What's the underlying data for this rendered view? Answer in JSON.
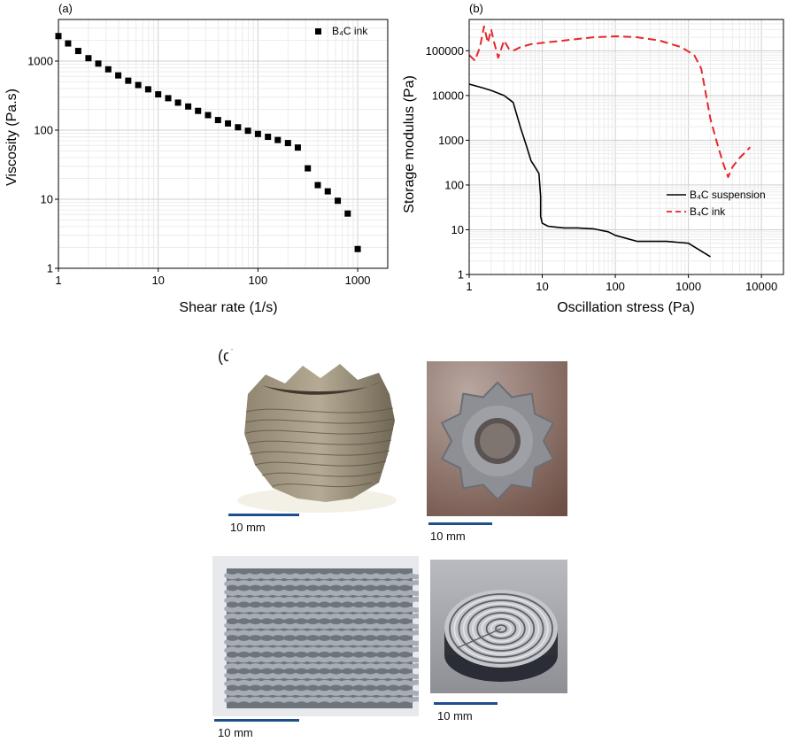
{
  "chart_data": [
    {
      "panel_label": "(a)",
      "type": "scatter",
      "xscale": "log",
      "yscale": "log",
      "xlim": [
        1,
        2000
      ],
      "ylim": [
        1,
        4000
      ],
      "xlabel": "Shear rate (1/s)",
      "ylabel": "Viscosity (Pa.s)",
      "xticks": [
        "1",
        "10",
        "100",
        "1000"
      ],
      "yticks": [
        "1",
        "10",
        "100",
        "1000"
      ],
      "grid": true,
      "legend_position": "top-right",
      "series": [
        {
          "name": "B₄C ink",
          "marker": "square",
          "color": "#000000",
          "x": [
            1,
            1.25,
            1.58,
            2,
            2.51,
            3.16,
            3.98,
            5.01,
            6.31,
            7.94,
            10,
            12.6,
            15.8,
            20,
            25.1,
            31.6,
            39.8,
            50.1,
            63.1,
            79.4,
            100,
            126,
            158,
            200,
            251,
            316,
            398,
            501,
            631,
            794,
            1000
          ],
          "y": [
            2300,
            1800,
            1400,
            1100,
            920,
            760,
            620,
            520,
            450,
            390,
            330,
            290,
            250,
            220,
            190,
            165,
            140,
            125,
            110,
            98,
            88,
            80,
            72,
            65,
            56,
            28,
            16,
            13,
            9.5,
            6.2,
            1.9
          ]
        }
      ]
    },
    {
      "panel_label": "(b)",
      "type": "line",
      "xscale": "log",
      "yscale": "log",
      "xlim": [
        1,
        20000
      ],
      "ylim": [
        1,
        500000
      ],
      "xlabel": "Oscillation stress (Pa)",
      "ylabel": "Storage modulus (Pa)",
      "xticks": [
        "1",
        "10",
        "100",
        "1000",
        "10000"
      ],
      "yticks": [
        "1",
        "10",
        "100",
        "1000",
        "10000",
        "100000"
      ],
      "grid": true,
      "legend_position": "bottom-right",
      "series": [
        {
          "name": "B₄C suspension",
          "style": "solid",
          "color": "#000000",
          "x": [
            1,
            1.5,
            2,
            3,
            4,
            5,
            6,
            7,
            8,
            9,
            9.5,
            9.5,
            10,
            12,
            15,
            20,
            30,
            50,
            80,
            100,
            200,
            500,
            1000,
            2000
          ],
          "y": [
            18000,
            15000,
            13000,
            10000,
            7000,
            2000,
            800,
            350,
            250,
            180,
            55,
            20,
            14,
            12,
            11.5,
            11,
            11,
            10.5,
            9,
            7.5,
            5.5,
            5.5,
            5,
            2.5
          ]
        },
        {
          "name": "B₄C ink",
          "style": "dashed",
          "color": "#e8262b",
          "x": [
            1,
            1.2,
            1.4,
            1.6,
            1.8,
            2,
            2.2,
            2.5,
            3,
            3.5,
            4,
            5,
            7,
            10,
            20,
            50,
            100,
            200,
            400,
            800,
            1200,
            1500,
            2000,
            2500,
            3000,
            3500,
            4000,
            5000,
            7000
          ],
          "y": [
            80000,
            60000,
            120000,
            350000,
            150000,
            300000,
            150000,
            70000,
            170000,
            110000,
            100000,
            120000,
            140000,
            150000,
            170000,
            200000,
            210000,
            200000,
            170000,
            120000,
            80000,
            40000,
            3000,
            800,
            300,
            150,
            250,
            400,
            700
          ]
        }
      ]
    }
  ],
  "panel_c": {
    "label": "(c)",
    "photos": [
      {
        "subject": "helical-gear-print",
        "scale": "10 mm"
      },
      {
        "subject": "gear-top-view-print",
        "scale": "10 mm"
      },
      {
        "subject": "lattice-block-print",
        "scale": "10 mm"
      },
      {
        "subject": "spiral-disc-print",
        "scale": "10 mm"
      }
    ]
  },
  "colors": {
    "accent": "#e8262b",
    "scalebar": "#1f4e8c"
  }
}
